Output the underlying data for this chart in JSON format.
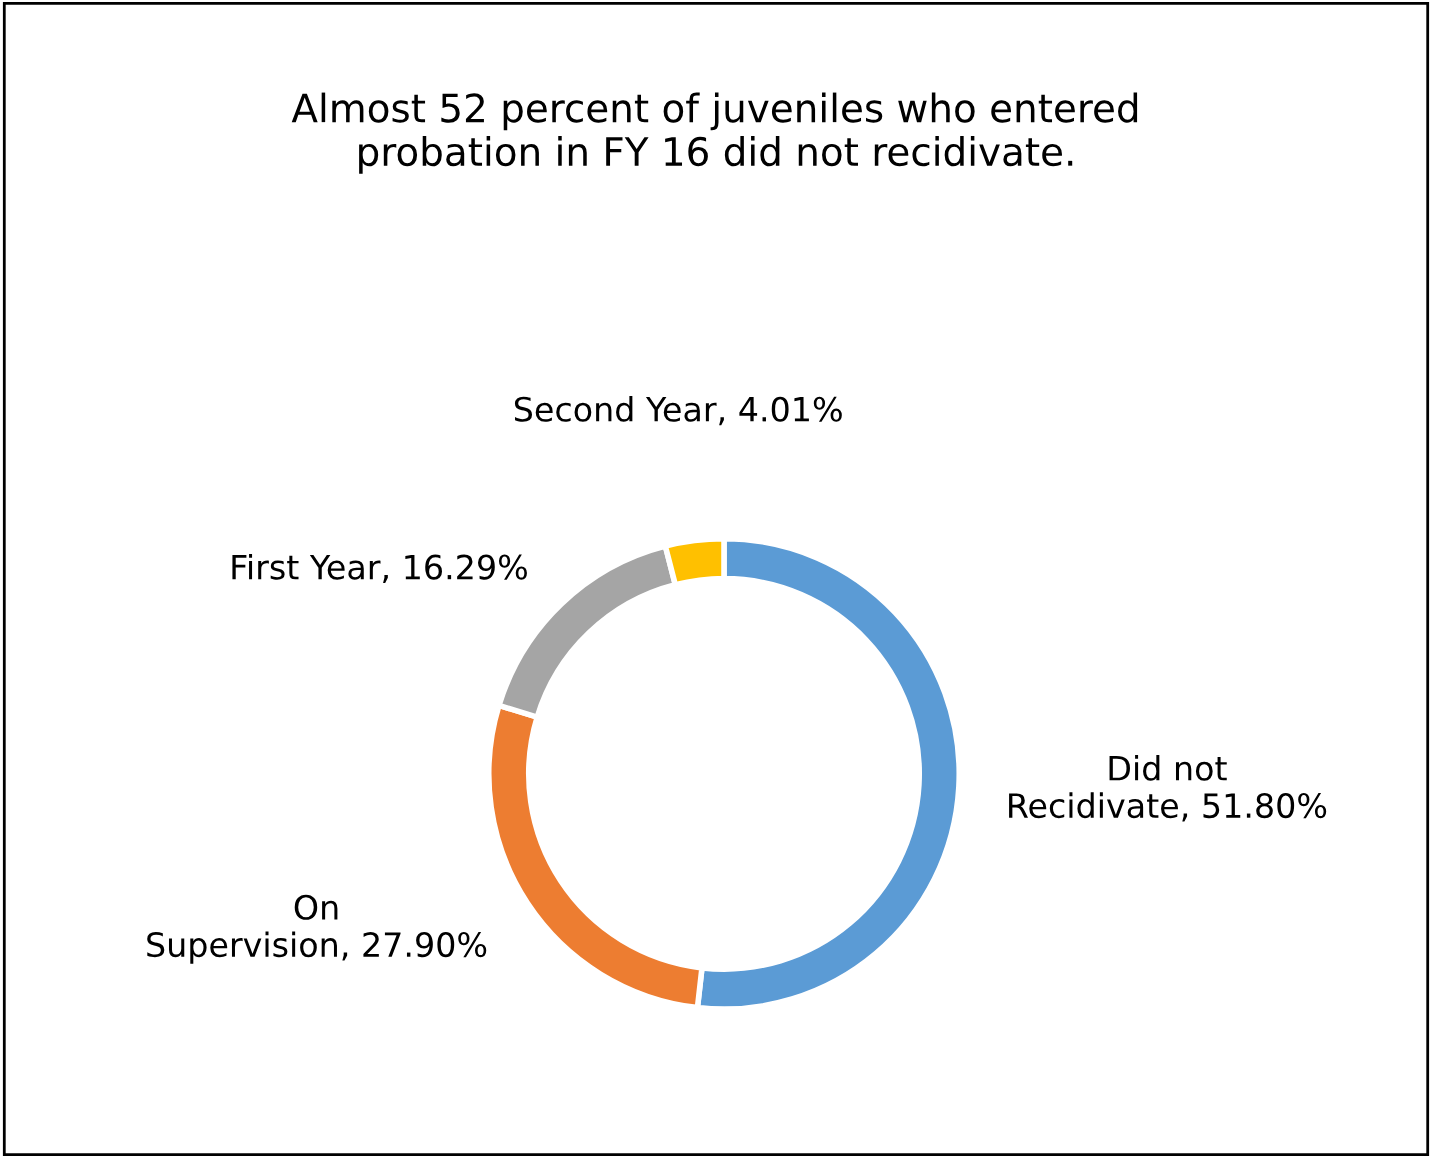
{
  "chart_data": {
    "type": "donut",
    "title": "Almost 52 percent of juveniles who entered\nprobation in FY 16 did not recidivate.",
    "categories": [
      "Did not\nRecidivate",
      "On\nSupervision",
      "First Year",
      "Second Year"
    ],
    "values": [
      51.8,
      27.9,
      16.29,
      4.01
    ],
    "value_labels": [
      "51.80%",
      "27.90%",
      "16.29%",
      "4.01%"
    ],
    "colors": [
      "#5b9bd5",
      "#ed7d31",
      "#a5a5a5",
      "#ffc000"
    ],
    "legend": false
  }
}
